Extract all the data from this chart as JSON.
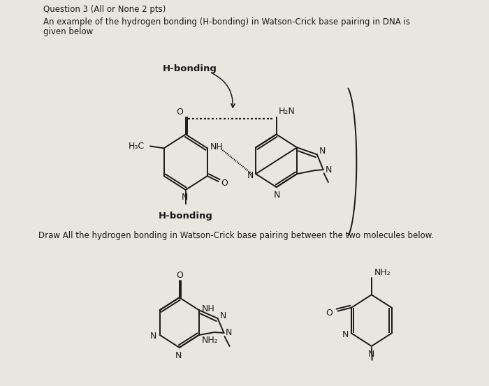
{
  "bg_color": "#d8d4ce",
  "paper_color": "#e8e6e0",
  "text_color": "#1a1a1a",
  "figsize": [
    7.0,
    5.53
  ],
  "dpi": 100,
  "title": "Question 3 (All or None 2 pts)",
  "line1": "An example of the hydrogen bonding (H-bonding) in Watson-Crick base pairing in DNA is",
  "line2": "given below",
  "draw_text": "Draw All the hydrogen bonding in Watson-Crick base pairing between the two molecules below.",
  "hbond1": "H-bonding",
  "hbond2": "H-bonding"
}
